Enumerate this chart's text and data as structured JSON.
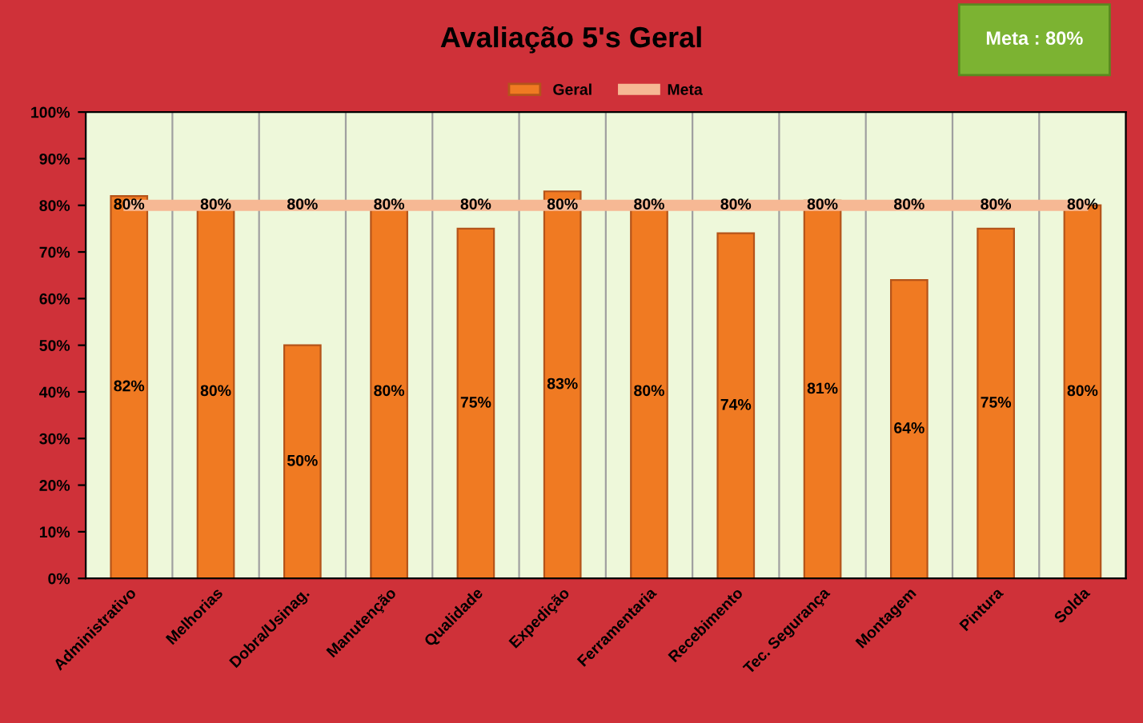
{
  "chart_data": {
    "type": "bar",
    "title": "Avaliação 5's Geral",
    "annotations": [
      "Meta : 80%"
    ],
    "categories": [
      "Administrativo",
      "Melhorias",
      "Dobra/Usinag.",
      "Manutenção",
      "Qualidade",
      "Expedição",
      "Ferramentaria",
      "Recebimento",
      "Tec. Segurança",
      "Montagem",
      "Pintura",
      "Solda"
    ],
    "series": [
      {
        "name": "Geral",
        "color": "#f07a22",
        "values": [
          82,
          80,
          50,
          80,
          75,
          83,
          80,
          74,
          81,
          64,
          75,
          80
        ],
        "value_labels": [
          "82%",
          "80%",
          "50%",
          "80%",
          "75%",
          "83%",
          "80%",
          "74%",
          "81%",
          "64%",
          "75%",
          "80%"
        ]
      },
      {
        "name": "Meta",
        "type": "line",
        "color": "#f6b894",
        "values": [
          80,
          80,
          80,
          80,
          80,
          80,
          80,
          80,
          80,
          80,
          80,
          80
        ],
        "value_labels": [
          "80%",
          "80%",
          "80%",
          "80%",
          "80%",
          "80%",
          "80%",
          "80%",
          "80%",
          "80%",
          "80%",
          "80%"
        ]
      }
    ],
    "ylim": [
      0,
      100
    ],
    "yticks": [
      {
        "value": 0,
        "label": "0%"
      },
      {
        "value": 10,
        "label": "10%"
      },
      {
        "value": 20,
        "label": "20%"
      },
      {
        "value": 30,
        "label": "30%"
      },
      {
        "value": 40,
        "label": "40%"
      },
      {
        "value": 50,
        "label": "50%"
      },
      {
        "value": 60,
        "label": "60%"
      },
      {
        "value": 70,
        "label": "70%"
      },
      {
        "value": 80,
        "label": "80%"
      },
      {
        "value": 90,
        "label": "90%"
      },
      {
        "value": 100,
        "label": "100%"
      }
    ],
    "grid": "x",
    "legend": "top",
    "marker": "none",
    "line_style": "solid"
  }
}
